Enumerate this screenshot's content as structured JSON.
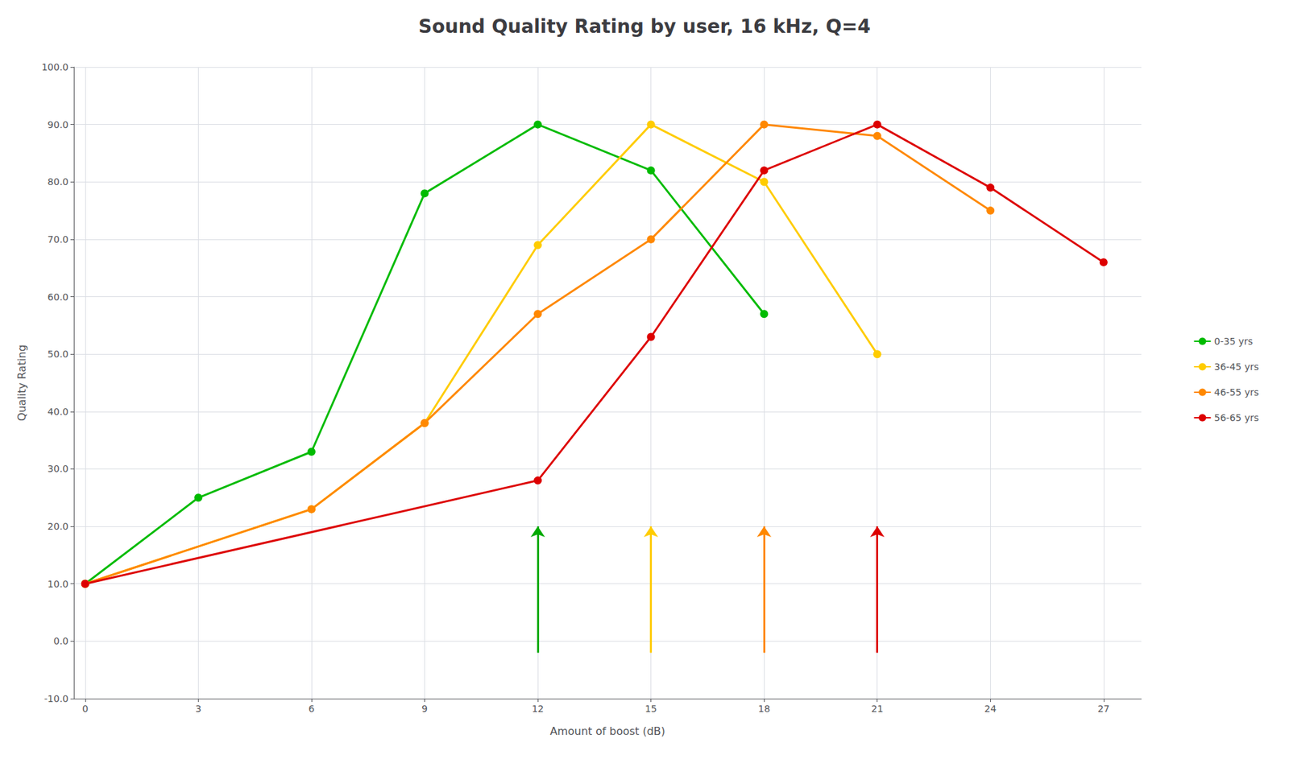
{
  "chart_data": {
    "type": "line",
    "title": "Sound Quality Rating by user, 16 kHz, Q=4",
    "x_label": "Amount of boost (dB)",
    "y_label": "Quality Rating",
    "x": [
      0,
      3,
      6,
      9,
      12,
      15,
      18,
      21,
      24,
      27
    ],
    "series": [
      {
        "name": "0-35 yrs",
        "color": "#00bb00",
        "values": [
          10,
          25,
          33,
          78,
          90,
          82,
          57,
          null,
          null,
          null
        ],
        "arrow": {
          "x": 12,
          "y": [
            -2,
            20
          ],
          "color": "#00aa00"
        }
      },
      {
        "name": "36-45 yrs",
        "color": "#ffcc00",
        "values": [
          10,
          null,
          23,
          38,
          69,
          90,
          80,
          50,
          null,
          null
        ],
        "arrow": {
          "x": 15,
          "y": [
            -2,
            20
          ],
          "color": "#ffcc00"
        }
      },
      {
        "name": "46-55 yrs",
        "color": "#ff8800",
        "values": [
          10,
          null,
          23,
          38,
          57,
          70,
          90,
          88,
          75,
          null
        ],
        "arrow": {
          "x": 18,
          "y": [
            -2,
            20
          ],
          "color": "#ff8800"
        }
      },
      {
        "name": "56-65 yrs",
        "color": "#dd0000",
        "values": [
          10,
          null,
          null,
          null,
          28,
          53,
          82,
          90,
          79,
          66
        ],
        "arrow": {
          "x": 21,
          "y": [
            -2,
            20
          ],
          "color": "#dd0000"
        }
      }
    ],
    "xlim": [
      -0.3,
      28
    ],
    "xticks": [
      0,
      3,
      6,
      9,
      12,
      15,
      18,
      21,
      24,
      27
    ],
    "ylim": [
      -10,
      100
    ],
    "yticks": [
      {
        "value": -10,
        "label": "-10.0"
      },
      {
        "value": 0,
        "label": "0.0"
      },
      {
        "value": 10,
        "label": "10.0"
      },
      {
        "value": 20,
        "label": "20.0"
      },
      {
        "value": 30,
        "label": "30.0"
      },
      {
        "value": 40,
        "label": "40.0"
      },
      {
        "value": 50,
        "label": "50.0"
      },
      {
        "value": 60,
        "label": "60.0"
      },
      {
        "value": 70,
        "label": "70.0"
      },
      {
        "value": 80,
        "label": "80.0"
      },
      {
        "value": 90,
        "label": "90.0"
      },
      {
        "value": 100,
        "label": "100.0"
      }
    ],
    "marker": "circle",
    "grid": true,
    "legend": "right"
  }
}
